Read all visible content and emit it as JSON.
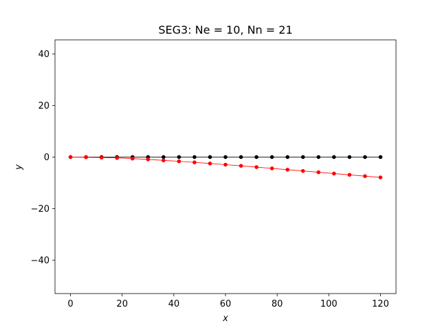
{
  "chart_data": {
    "type": "line",
    "title": "SEG3: Ne = 10, Nn = 21",
    "xlabel": "x",
    "ylabel": "y",
    "xlim": [
      -6,
      126
    ],
    "ylim": [
      -53,
      45.5
    ],
    "xticks": [
      0,
      20,
      40,
      60,
      80,
      100,
      120
    ],
    "yticks": [
      -40,
      -20,
      0,
      20,
      40
    ],
    "xtick_labels": [
      "0",
      "20",
      "40",
      "60",
      "80",
      "100",
      "120"
    ],
    "ytick_labels": [
      "−40",
      "−20",
      "0",
      "20",
      "40"
    ],
    "grid": false,
    "series": [
      {
        "color": "#000000",
        "x": [
          0,
          6,
          12,
          18,
          24,
          30,
          36,
          42,
          48,
          54,
          60,
          66,
          72,
          78,
          84,
          90,
          96,
          102,
          108,
          114,
          120
        ],
        "y": [
          0,
          0,
          0,
          0,
          0,
          0,
          0,
          0,
          0,
          0,
          0,
          0,
          0,
          0,
          0,
          0,
          0,
          0,
          0,
          0,
          0
        ]
      },
      {
        "color": "#ff0000",
        "x": [
          0,
          6,
          12,
          18,
          24,
          30,
          36,
          42,
          48,
          54,
          60,
          66,
          72,
          78,
          84,
          90,
          96,
          102,
          108,
          114,
          120
        ],
        "y": [
          0,
          -0.06,
          -0.18,
          -0.35,
          -0.6,
          -0.9,
          -1.3,
          -1.65,
          -2.05,
          -2.5,
          -2.95,
          -3.4,
          -3.9,
          -4.4,
          -4.9,
          -5.4,
          -5.9,
          -6.4,
          -6.9,
          -7.4,
          -7.9
        ]
      }
    ]
  }
}
